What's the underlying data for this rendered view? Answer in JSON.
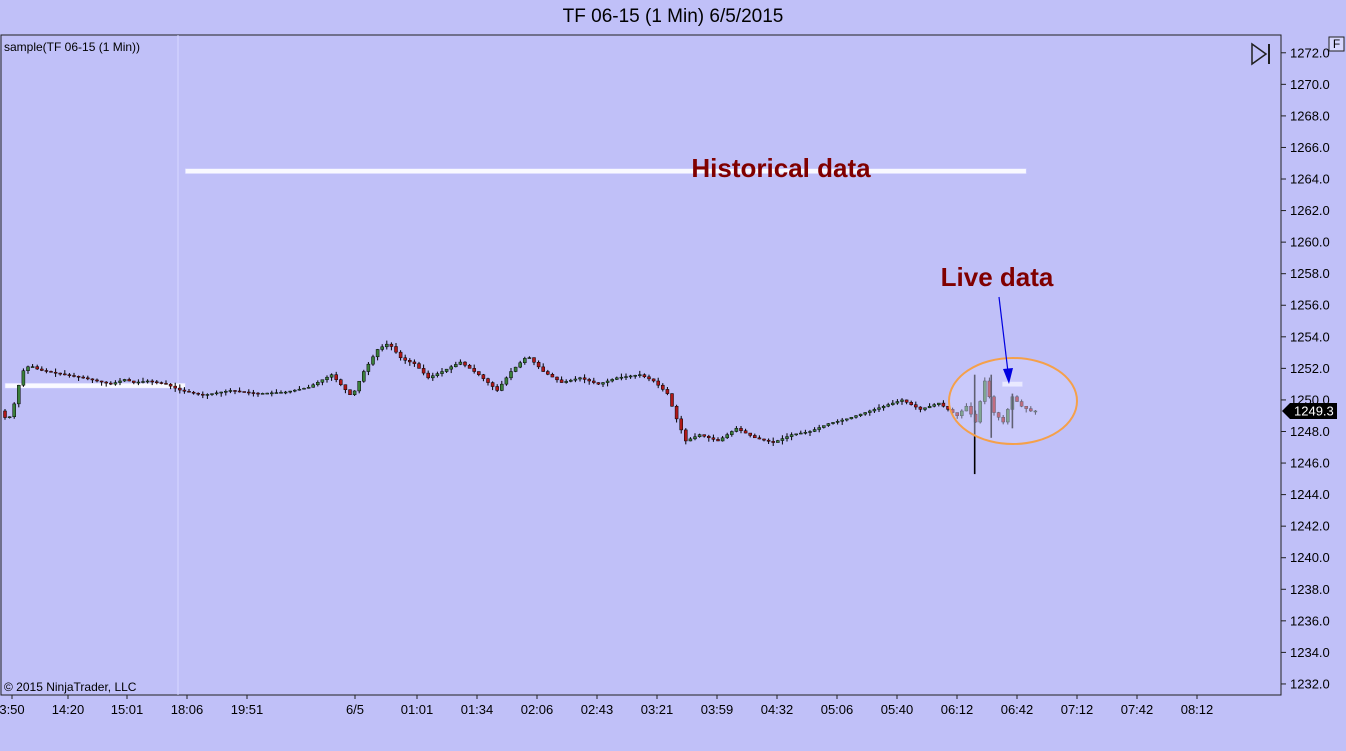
{
  "title": "TF 06-15 (1 Min)  6/5/2015",
  "panel_label": "sample(TF 06-15 (1 Min))",
  "copyright": "© 2015 NinjaTrader, LLC",
  "f_button": "F",
  "colors": {
    "background": "#c0c0f8",
    "annotation_text": "#800000",
    "highlight_ellipse": "#f5a04a",
    "arrow": "#0000e0",
    "price_line": "#ffffff",
    "up_bar": "#3b7f3b",
    "down_bar": "#b01818"
  },
  "chart_data": {
    "type": "candlestick",
    "x_labels": [
      "3:50",
      "14:20",
      "15:01",
      "18:06",
      "19:51",
      "6/5",
      "01:01",
      "01:34",
      "02:06",
      "02:43",
      "03:21",
      "03:59",
      "04:32",
      "05:06",
      "05:40",
      "06:12",
      "06:42",
      "07:12",
      "07:42",
      "08:12"
    ],
    "y_ticks": [
      "1272.0",
      "1270.0",
      "1268.0",
      "1266.0",
      "1264.0",
      "1262.0",
      "1260.0",
      "1258.0",
      "1256.0",
      "1254.0",
      "1252.0",
      "1250.0",
      "1248.0",
      "1246.0",
      "1244.0",
      "1242.0",
      "1240.0",
      "1238.0",
      "1236.0",
      "1234.0",
      "1232.0"
    ],
    "ylim": [
      1231.3,
      1273.0
    ],
    "last_price": "1249.3",
    "price_path": [
      [
        0,
        1249.3
      ],
      [
        0.6,
        1248.8
      ],
      [
        1.2,
        1249.0
      ],
      [
        1.8,
        1250.5
      ],
      [
        2.4,
        1251.8
      ],
      [
        3.2,
        1252.2
      ],
      [
        4.2,
        1251.9
      ],
      [
        6,
        1251.7
      ],
      [
        9,
        1251.4
      ],
      [
        12,
        1251.0
      ],
      [
        13.5,
        1251.3
      ],
      [
        14.5,
        1251.1
      ],
      [
        16,
        1251.2
      ],
      [
        18,
        1251.0
      ],
      [
        19.6,
        1250.6
      ],
      [
        22,
        1250.3
      ],
      [
        25,
        1250.6
      ],
      [
        28,
        1250.4
      ],
      [
        31,
        1250.5
      ],
      [
        33.5,
        1250.8
      ],
      [
        36,
        1251.6
      ],
      [
        38.2,
        1250.2
      ],
      [
        39.5,
        1251.8
      ],
      [
        41,
        1253.2
      ],
      [
        42.2,
        1253.6
      ],
      [
        43.6,
        1252.6
      ],
      [
        45,
        1252.3
      ],
      [
        46.5,
        1251.4
      ],
      [
        48,
        1251.8
      ],
      [
        50,
        1252.4
      ],
      [
        52,
        1251.6
      ],
      [
        54,
        1250.6
      ],
      [
        55.5,
        1251.8
      ],
      [
        57.3,
        1252.8
      ],
      [
        59,
        1251.8
      ],
      [
        61,
        1251.1
      ],
      [
        63,
        1251.4
      ],
      [
        65,
        1251.0
      ],
      [
        67,
        1251.4
      ],
      [
        69.5,
        1251.6
      ],
      [
        71,
        1251.2
      ],
      [
        72.5,
        1250.4
      ],
      [
        73.5,
        1248.8
      ],
      [
        74.5,
        1247.4
      ],
      [
        76,
        1247.8
      ],
      [
        78,
        1247.4
      ],
      [
        80,
        1248.2
      ],
      [
        82,
        1247.6
      ],
      [
        84,
        1247.3
      ],
      [
        86,
        1247.8
      ],
      [
        88,
        1248.0
      ],
      [
        90,
        1248.5
      ],
      [
        92,
        1248.8
      ],
      [
        94,
        1249.2
      ],
      [
        96,
        1249.6
      ],
      [
        98,
        1250.0
      ],
      [
        100,
        1249.4
      ],
      [
        102,
        1249.8
      ],
      [
        104,
        1249.0
      ],
      [
        105,
        1249.6
      ],
      [
        106,
        1248.6
      ],
      [
        107,
        1251.2
      ],
      [
        108,
        1249.2
      ],
      [
        109,
        1248.6
      ],
      [
        110,
        1250.2
      ],
      [
        111,
        1249.6
      ],
      [
        112,
        1249.3
      ]
    ],
    "wicks": [
      {
        "x": 105.4,
        "high": 1251.6,
        "low": 1245.3
      },
      {
        "x": 107.2,
        "high": 1251.6,
        "low": 1247.6
      },
      {
        "x": 109.5,
        "high": 1250.4,
        "low": 1248.2
      }
    ],
    "annotations": [
      {
        "text": "Historical data",
        "price": 1264.5,
        "x_from": 19.6,
        "x_to": 111
      },
      {
        "text": "Live data",
        "price": 1251.0,
        "x_from": 108.4,
        "x_to": 110.6
      }
    ],
    "left_level": {
      "price": 1250.9,
      "x_from": 0,
      "x_to": 19.6
    }
  }
}
